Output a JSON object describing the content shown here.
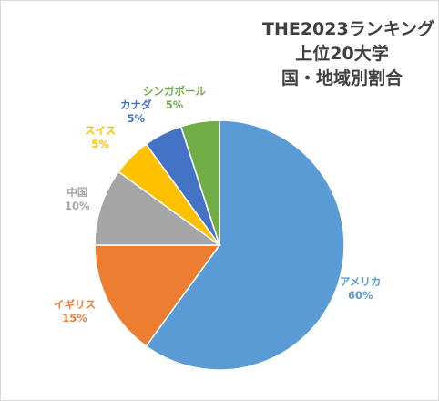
{
  "chart_data": {
    "type": "pie",
    "title_lines": [
      "THE2023ランキング",
      "上位20大学",
      "国・地域別割合"
    ],
    "slices": [
      {
        "label": "アメリカ",
        "value": 60,
        "percent_label": "60%",
        "color": "#5b9bd5"
      },
      {
        "label": "イギリス",
        "value": 15,
        "percent_label": "15%",
        "color": "#ed7d31"
      },
      {
        "label": "中国",
        "value": 10,
        "percent_label": "10%",
        "color": "#a5a5a5"
      },
      {
        "label": "スイス",
        "value": 5,
        "percent_label": "5%",
        "color": "#ffc000"
      },
      {
        "label": "カナダ",
        "value": 5,
        "percent_label": "5%",
        "color": "#4472c4"
      },
      {
        "label": "シンガポール",
        "value": 5,
        "percent_label": "5%",
        "color": "#70ad47"
      }
    ],
    "legend": "none",
    "start_angle": "top, clockwise"
  }
}
